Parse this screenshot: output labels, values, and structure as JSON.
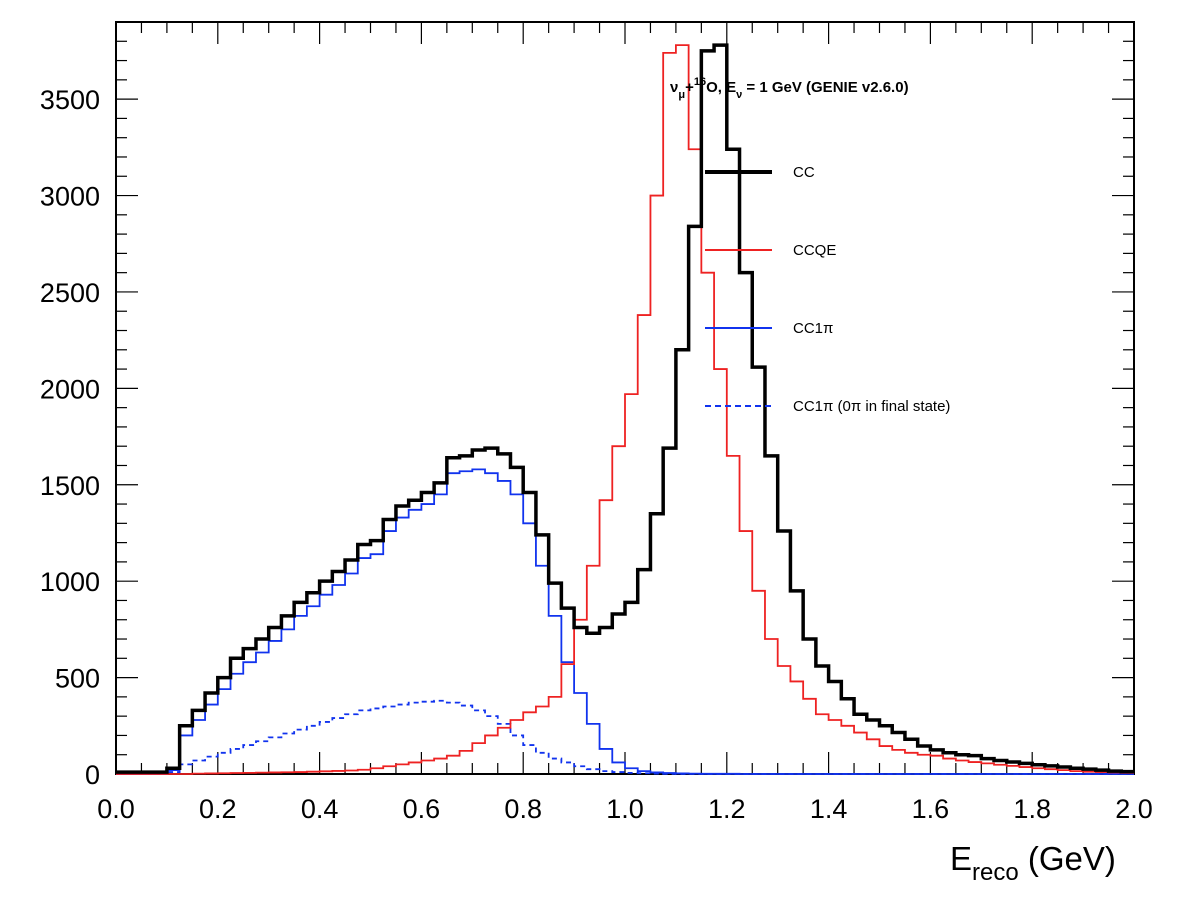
{
  "chart_data": {
    "type": "line",
    "title_parts": {
      "main": "ν",
      "sub1": "μ",
      "plus": "+",
      "sup": "16",
      "rest": "O, E",
      "sub2": "ν",
      "tail": " = 1 GeV (GENIE v2.6.0)"
    },
    "xlabel": {
      "main": "E",
      "sub": "reco",
      "rest": " (GeV)"
    },
    "ylabel": "",
    "xlim": [
      0.0,
      2.0
    ],
    "ylim": [
      0,
      3900
    ],
    "x_ticks": [
      "0.0",
      "0.2",
      "0.4",
      "0.6",
      "0.8",
      "1.0",
      "1.2",
      "1.4",
      "1.6",
      "1.8",
      "2.0"
    ],
    "y_ticks": [
      "0",
      "500",
      "1000",
      "1500",
      "2000",
      "2500",
      "3000",
      "3500"
    ],
    "bin_width": 0.025,
    "x": [
      0.0,
      0.025,
      0.05,
      0.075,
      0.1,
      0.125,
      0.15,
      0.175,
      0.2,
      0.225,
      0.25,
      0.275,
      0.3,
      0.325,
      0.35,
      0.375,
      0.4,
      0.425,
      0.45,
      0.475,
      0.5,
      0.525,
      0.55,
      0.575,
      0.6,
      0.625,
      0.65,
      0.675,
      0.7,
      0.725,
      0.75,
      0.775,
      0.8,
      0.825,
      0.85,
      0.875,
      0.9,
      0.925,
      0.95,
      0.975,
      1.0,
      1.025,
      1.05,
      1.075,
      1.1,
      1.125,
      1.15,
      1.175,
      1.2,
      1.225,
      1.25,
      1.275,
      1.3,
      1.325,
      1.35,
      1.375,
      1.4,
      1.425,
      1.45,
      1.475,
      1.5,
      1.525,
      1.55,
      1.575,
      1.6,
      1.625,
      1.65,
      1.675,
      1.7,
      1.725,
      1.75,
      1.775,
      1.8,
      1.825,
      1.85,
      1.875,
      1.9,
      1.925,
      1.95,
      1.975
    ],
    "series": [
      {
        "name": "CC",
        "color": "#000000",
        "style": "solid-thick",
        "values": [
          10,
          10,
          10,
          10,
          30,
          250,
          330,
          420,
          500,
          600,
          650,
          700,
          760,
          820,
          890,
          940,
          1000,
          1050,
          1110,
          1190,
          1210,
          1320,
          1390,
          1420,
          1460,
          1510,
          1640,
          1650,
          1680,
          1690,
          1660,
          1590,
          1460,
          1240,
          990,
          860,
          760,
          730,
          760,
          830,
          890,
          1060,
          1350,
          1690,
          2200,
          2840,
          3750,
          3780,
          3240,
          2600,
          2110,
          1650,
          1260,
          950,
          700,
          560,
          480,
          390,
          310,
          280,
          250,
          215,
          180,
          145,
          125,
          110,
          100,
          95,
          80,
          70,
          62,
          55,
          48,
          42,
          36,
          30,
          25,
          20,
          15,
          12
        ]
      },
      {
        "name": "CCQE",
        "color": "#ee2222",
        "style": "solid",
        "values": [
          0,
          0,
          0,
          0,
          0,
          0,
          2,
          3,
          4,
          5,
          6,
          7,
          8,
          9,
          10,
          12,
          14,
          16,
          18,
          22,
          30,
          40,
          50,
          60,
          70,
          80,
          95,
          120,
          160,
          200,
          240,
          280,
          320,
          350,
          400,
          570,
          800,
          1080,
          1420,
          1700,
          1970,
          2380,
          3000,
          3740,
          3780,
          3240,
          2600,
          2100,
          1650,
          1260,
          950,
          700,
          560,
          480,
          390,
          310,
          280,
          250,
          215,
          180,
          145,
          125,
          110,
          100,
          95,
          80,
          70,
          62,
          55,
          48,
          42,
          36,
          30,
          25,
          20,
          15,
          12,
          10,
          8,
          6
        ]
      },
      {
        "name": "CC1π",
        "color": "#1133ee",
        "style": "solid",
        "values": [
          0,
          0,
          0,
          0,
          20,
          200,
          280,
          360,
          440,
          520,
          580,
          630,
          690,
          750,
          820,
          870,
          930,
          980,
          1040,
          1120,
          1140,
          1260,
          1330,
          1370,
          1400,
          1450,
          1560,
          1570,
          1580,
          1560,
          1520,
          1450,
          1300,
          1080,
          820,
          580,
          420,
          260,
          130,
          60,
          30,
          15,
          8,
          5,
          3,
          2,
          1,
          1,
          1,
          0,
          0,
          0,
          0,
          0,
          0,
          0,
          0,
          0,
          0,
          0,
          0,
          0,
          0,
          0,
          0,
          0,
          0,
          0,
          0,
          0,
          0,
          0,
          0,
          0,
          0,
          0,
          0,
          0,
          0,
          0
        ]
      },
      {
        "name": "CC1π (0π in final state)",
        "color": "#1133ee",
        "style": "dashed",
        "values": [
          0,
          0,
          0,
          0,
          10,
          50,
          70,
          90,
          110,
          130,
          150,
          170,
          190,
          210,
          230,
          250,
          270,
          290,
          310,
          330,
          340,
          350,
          360,
          370,
          375,
          380,
          370,
          355,
          330,
          300,
          260,
          200,
          150,
          110,
          80,
          60,
          40,
          25,
          15,
          10,
          6,
          4,
          2,
          1,
          0,
          0,
          0,
          0,
          0,
          0,
          0,
          0,
          0,
          0,
          0,
          0,
          0,
          0,
          0,
          0,
          0,
          0,
          0,
          0,
          0,
          0,
          0,
          0,
          0,
          0,
          0,
          0,
          0,
          0,
          0,
          0,
          0,
          0,
          0,
          0
        ]
      }
    ],
    "legend": {
      "placement": "top-right",
      "entries": [
        "CC",
        "CCQE",
        "CC1π",
        "CC1π (0π in final state)"
      ]
    }
  }
}
